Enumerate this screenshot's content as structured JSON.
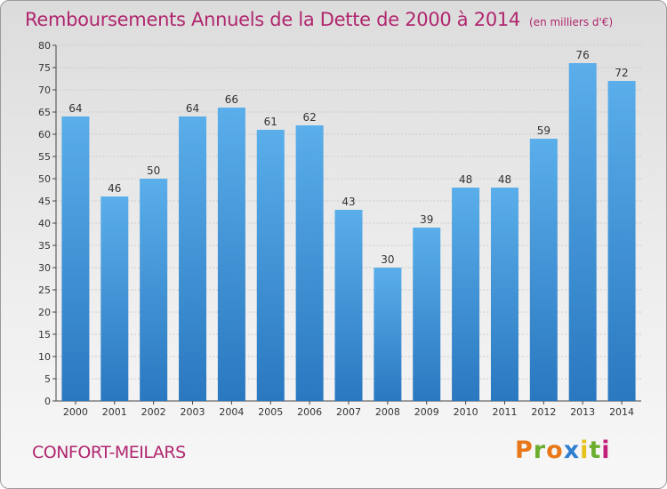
{
  "header": {
    "title": "Remboursements Annuels de la Dette de 2000 à 2014",
    "unit": "(en milliers d'€)"
  },
  "footer": {
    "commune": "CONFORT-MEILARS",
    "brand": "Proxiti"
  },
  "colors": {
    "title": "#b0266e",
    "bar_light": "#5aaeea",
    "bar_dark": "#2a78c0",
    "gridline": "#cccccc",
    "brand_letters": [
      "#e8771a",
      "#6cae2f",
      "#e8771a",
      "#2f7fcf",
      "#e8c21a",
      "#6cae2f",
      "#c1207a"
    ]
  },
  "chart_data": {
    "type": "bar",
    "title": "Remboursements Annuels de la Dette de 2000 à 2014",
    "xlabel": "",
    "ylabel": "",
    "categories": [
      "2000",
      "2001",
      "2002",
      "2003",
      "2004",
      "2005",
      "2006",
      "2007",
      "2008",
      "2009",
      "2010",
      "2011",
      "2012",
      "2013",
      "2014"
    ],
    "values": [
      64,
      46,
      50,
      64,
      66,
      61,
      62,
      43,
      30,
      39,
      48,
      48,
      59,
      76,
      72
    ],
    "ylim": [
      0,
      80
    ],
    "yticks": [
      0,
      5,
      10,
      15,
      20,
      25,
      30,
      35,
      40,
      45,
      50,
      55,
      60,
      65,
      70,
      75,
      80
    ],
    "grid": true,
    "data_labels": true
  }
}
